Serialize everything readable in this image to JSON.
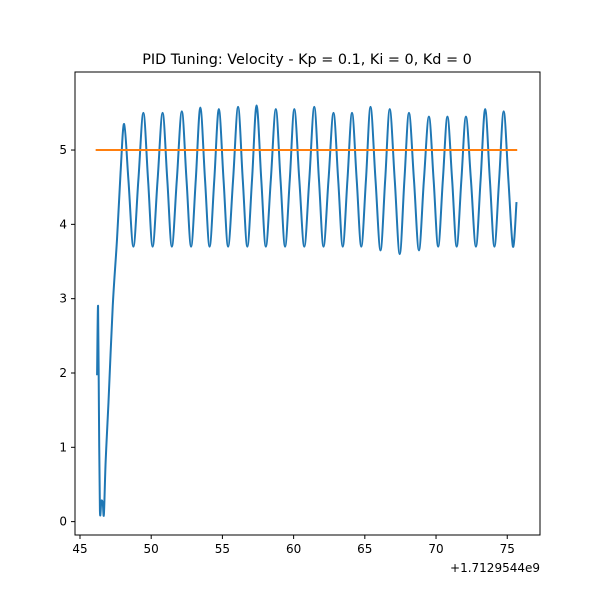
{
  "chart_data": {
    "type": "line",
    "title": "PID Tuning: Velocity - Kp = 0.1, Ki = 0, Kd = 0",
    "x_offset_label": "+1.7129544e9",
    "xlim": [
      44.65,
      77.3
    ],
    "ylim": [
      -0.18,
      6.05
    ],
    "xticks": [
      45,
      50,
      55,
      60,
      65,
      70,
      75
    ],
    "yticks": [
      0,
      1,
      2,
      3,
      4,
      5
    ],
    "series": [
      {
        "color": "#1f77b4",
        "x": [
          46.2,
          46.27,
          46.33,
          46.4,
          46.5,
          46.6,
          46.68,
          46.8,
          47.0,
          47.3,
          47.6,
          47.85,
          48.1,
          48.4,
          48.75,
          49.1,
          49.45,
          49.78,
          50.1,
          50.45,
          50.8,
          51.13,
          51.45,
          51.8,
          52.15,
          52.48,
          52.8,
          53.13,
          53.45,
          53.78,
          54.1,
          54.43,
          54.75,
          55.08,
          55.4,
          55.75,
          56.1,
          56.43,
          56.75,
          57.08,
          57.4,
          57.73,
          58.05,
          58.4,
          58.75,
          59.08,
          59.4,
          59.73,
          60.05,
          60.4,
          60.75,
          61.1,
          61.45,
          61.78,
          62.1,
          62.45,
          62.8,
          63.13,
          63.45,
          63.78,
          64.1,
          64.43,
          64.75,
          65.08,
          65.4,
          65.75,
          66.1,
          66.43,
          66.75,
          67.1,
          67.45,
          67.78,
          68.1,
          68.45,
          68.8,
          69.15,
          69.5,
          69.83,
          70.15,
          70.48,
          70.8,
          71.13,
          71.45,
          71.78,
          72.1,
          72.45,
          72.8,
          73.13,
          73.45,
          73.78,
          74.1,
          74.43,
          74.75,
          75.08,
          75.4,
          75.65
        ],
        "values": [
          1.97,
          2.9,
          1.5,
          0.15,
          0.28,
          0.25,
          0.1,
          0.8,
          1.6,
          2.9,
          3.8,
          4.7,
          5.35,
          4.6,
          3.7,
          4.6,
          5.5,
          4.6,
          3.7,
          4.6,
          5.5,
          4.6,
          3.7,
          4.6,
          5.52,
          4.6,
          3.7,
          4.6,
          5.57,
          4.6,
          3.7,
          4.6,
          5.55,
          4.6,
          3.7,
          4.6,
          5.58,
          4.6,
          3.7,
          4.6,
          5.6,
          4.6,
          3.7,
          4.6,
          5.55,
          4.6,
          3.7,
          4.6,
          5.55,
          4.6,
          3.7,
          4.6,
          5.58,
          4.6,
          3.7,
          4.6,
          5.5,
          4.6,
          3.7,
          4.6,
          5.5,
          4.6,
          3.7,
          4.6,
          5.58,
          4.6,
          3.65,
          4.6,
          5.55,
          4.6,
          3.6,
          4.6,
          5.5,
          4.6,
          3.65,
          4.6,
          5.45,
          4.6,
          3.7,
          4.6,
          5.45,
          4.6,
          3.7,
          4.6,
          5.45,
          4.6,
          3.7,
          4.6,
          5.55,
          4.6,
          3.7,
          4.6,
          5.52,
          4.6,
          3.7,
          4.3
        ]
      },
      {
        "color": "#ff7f0e",
        "x": [
          46.1,
          75.7
        ],
        "values": [
          5,
          5
        ]
      }
    ]
  }
}
